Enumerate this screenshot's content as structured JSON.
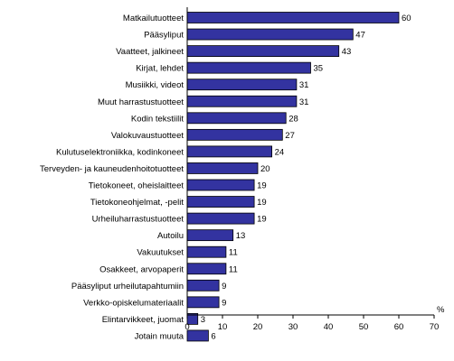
{
  "chart_data": {
    "type": "bar",
    "orientation": "horizontal",
    "categories": [
      "Matkailutuotteet",
      "Pääsyliput",
      "Vaatteet, jalkineet",
      "Kirjat, lehdet",
      "Musiikki, videot",
      "Muut harrastustuotteet",
      "Kodin tekstiilit",
      "Valokuvaustuotteet",
      "Kulutuselektroniikka, kodinkoneet",
      "Terveyden- ja kauneudenhoitotuotteet",
      "Tietokoneet, oheislaitteet",
      "Tietokoneohjelmat, -pelit",
      "Urheiluharrastustuotteet",
      "Autoilu",
      "Vakuutukset",
      "Osakkeet, arvopaperit",
      "Pääsyliput urheilutapahtumiin",
      "Verkko-opiskelumateriaalit",
      "Elintarvikkeet, juomat",
      "Jotain muuta"
    ],
    "values": [
      60,
      47,
      43,
      35,
      31,
      31,
      28,
      27,
      24,
      20,
      19,
      19,
      19,
      13,
      11,
      11,
      9,
      9,
      3,
      6
    ],
    "xlim": [
      0,
      70
    ],
    "xticks": [
      "0",
      "10",
      "20",
      "30",
      "40",
      "50",
      "60",
      "70"
    ],
    "xunit": "%",
    "bar_color": "#3333a0",
    "grid": false,
    "legend": false
  }
}
